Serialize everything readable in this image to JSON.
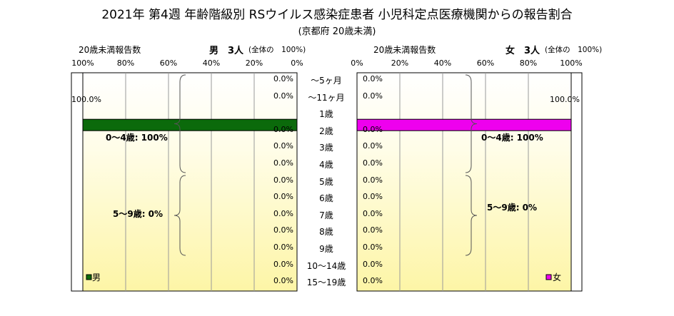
{
  "title": "2021年 第4週 年齢階級別 RSウイルス感染症患者 小児科定点医療機関からの報告割合",
  "subtitle": "(京都府 20歳未満)",
  "colors": {
    "male": "#0b6a0b",
    "female": "#ee00ee"
  },
  "chart_data": {
    "type": "bar",
    "categories": [
      "～5ヶ月",
      "～11ヶ月",
      "1歳",
      "2歳",
      "3歳",
      "4歳",
      "5歳",
      "6歳",
      "7歳",
      "8歳",
      "9歳",
      "10～14歳",
      "15～19歳"
    ],
    "axis_ticks": [
      "100%",
      "80%",
      "60%",
      "40%",
      "20%",
      "0%"
    ],
    "axis_ticks_right": [
      "0%",
      "20%",
      "40%",
      "60%",
      "80%",
      "100%"
    ],
    "xlim": [
      0,
      100
    ],
    "grid": true,
    "series": [
      {
        "name": "男",
        "header_left": "20歳未満報告数",
        "header_main": "男　3人",
        "header_note": "(全体の　100%)",
        "values": [
          0,
          0,
          100,
          0,
          0,
          0,
          0,
          0,
          0,
          0,
          0,
          0,
          0
        ],
        "labels": [
          "0.0%",
          "0.0%",
          "100.0%",
          "0.0%",
          "0.0%",
          "0.0%",
          "0.0%",
          "0.0%",
          "0.0%",
          "0.0%",
          "0.0%",
          "0.0%",
          "0.0%"
        ],
        "groups": [
          {
            "label": "0～4歳: 100%"
          },
          {
            "label": "5～9歳: 0%"
          }
        ]
      },
      {
        "name": "女",
        "header_left": "20歳未満報告数",
        "header_main": "女　3人",
        "header_note": "(全体の　100%)",
        "values": [
          0,
          0,
          100,
          0,
          0,
          0,
          0,
          0,
          0,
          0,
          0,
          0,
          0
        ],
        "labels": [
          "0.0%",
          "0.0%",
          "100.0%",
          "0.0%",
          "0.0%",
          "0.0%",
          "0.0%",
          "0.0%",
          "0.0%",
          "0.0%",
          "0.0%",
          "0.0%",
          "0.0%"
        ],
        "groups": [
          {
            "label": "0～4歳: 100%"
          },
          {
            "label": "5～9歳: 0%"
          }
        ]
      }
    ]
  }
}
